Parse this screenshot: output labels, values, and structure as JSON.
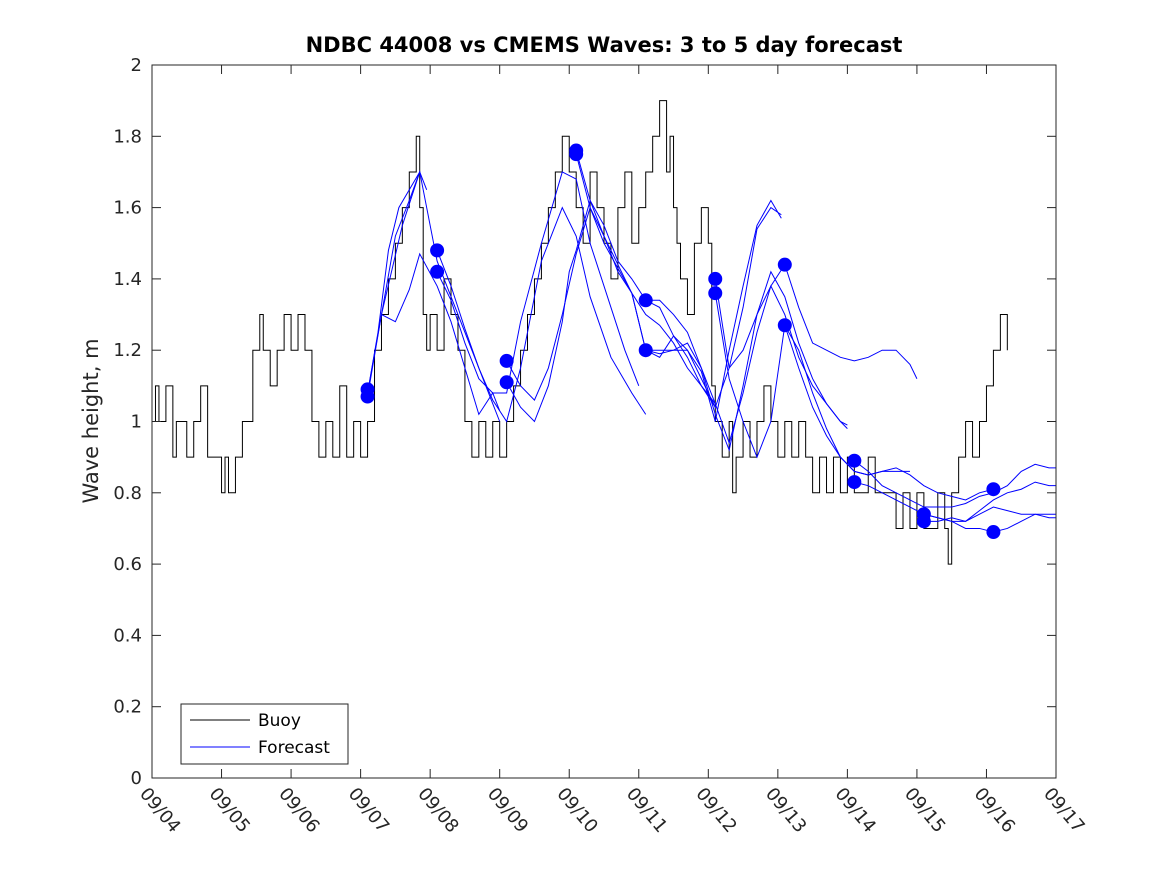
{
  "chart_data": {
    "type": "line",
    "title": "NDBC 44008 vs CMEMS Waves: 3 to 5 day forecast",
    "xlabel": "",
    "ylabel": "Wave height, m",
    "xlim": [
      0,
      13
    ],
    "ylim": [
      0,
      2
    ],
    "x_tick_labels": [
      "09/04",
      "09/05",
      "09/06",
      "09/07",
      "09/08",
      "09/09",
      "09/10",
      "09/11",
      "09/12",
      "09/13",
      "09/14",
      "09/15",
      "09/16",
      "09/17"
    ],
    "y_ticks": [
      0,
      0.2,
      0.4,
      0.6,
      0.8,
      1,
      1.2,
      1.4,
      1.6,
      1.8,
      2
    ],
    "y_tick_labels": [
      "0",
      "0.2",
      "0.4",
      "0.6",
      "0.8",
      "1",
      "1.2",
      "1.4",
      "1.6",
      "1.8",
      "2"
    ],
    "legend": {
      "position": "bottom-left",
      "entries": [
        {
          "label": "Buoy",
          "color": "#000000"
        },
        {
          "label": "Forecast",
          "color": "#0000ff"
        }
      ]
    },
    "colors": {
      "buoy": "#000000",
      "forecast": "#0000ff"
    },
    "buoy": {
      "name": "Buoy",
      "x": [
        0,
        0.05,
        0.1,
        0.2,
        0.3,
        0.35,
        0.4,
        0.5,
        0.6,
        0.7,
        0.8,
        0.9,
        1.0,
        1.05,
        1.1,
        1.2,
        1.3,
        1.45,
        1.55,
        1.6,
        1.7,
        1.8,
        1.9,
        2.0,
        2.1,
        2.2,
        2.3,
        2.4,
        2.5,
        2.6,
        2.7,
        2.8,
        2.9,
        3.0,
        3.1,
        3.2,
        3.3,
        3.4,
        3.5,
        3.6,
        3.7,
        3.8,
        3.85,
        3.9,
        3.95,
        4.0,
        4.1,
        4.2,
        4.3,
        4.4,
        4.5,
        4.6,
        4.7,
        4.8,
        4.9,
        5.0,
        5.1,
        5.2,
        5.3,
        5.4,
        5.5,
        5.6,
        5.7,
        5.8,
        5.9,
        6.0,
        6.1,
        6.2,
        6.3,
        6.4,
        6.5,
        6.6,
        6.7,
        6.8,
        6.9,
        7.0,
        7.1,
        7.2,
        7.3,
        7.4,
        7.45,
        7.5,
        7.55,
        7.6,
        7.7,
        7.8,
        7.9,
        8.0,
        8.05,
        8.1,
        8.2,
        8.3,
        8.35,
        8.4,
        8.5,
        8.6,
        8.7,
        8.8,
        8.9,
        9.0,
        9.1,
        9.2,
        9.3,
        9.4,
        9.5,
        9.6,
        9.7,
        9.8,
        9.9,
        10.0,
        10.1,
        10.2,
        10.3,
        10.4,
        10.5,
        10.6,
        10.7,
        10.8,
        10.9,
        11.0,
        11.1,
        11.2,
        11.3,
        11.4,
        11.45,
        11.5,
        11.6,
        11.7,
        11.8,
        11.9,
        12.0,
        12.1,
        12.2,
        12.3
      ],
      "y": [
        1.0,
        1.1,
        1.0,
        1.1,
        0.9,
        1.0,
        1.0,
        0.9,
        1.0,
        1.1,
        0.9,
        0.9,
        0.8,
        0.9,
        0.8,
        0.9,
        1.0,
        1.2,
        1.3,
        1.2,
        1.1,
        1.2,
        1.3,
        1.2,
        1.3,
        1.2,
        1.0,
        0.9,
        1.0,
        0.9,
        1.1,
        0.9,
        1.0,
        0.9,
        1.0,
        1.2,
        1.3,
        1.4,
        1.5,
        1.6,
        1.7,
        1.8,
        1.6,
        1.3,
        1.2,
        1.3,
        1.2,
        1.4,
        1.3,
        1.2,
        1.0,
        0.9,
        1.0,
        0.9,
        1.0,
        0.9,
        1.0,
        1.1,
        1.2,
        1.3,
        1.4,
        1.5,
        1.6,
        1.7,
        1.8,
        1.7,
        1.6,
        1.5,
        1.7,
        1.6,
        1.5,
        1.4,
        1.6,
        1.7,
        1.5,
        1.6,
        1.7,
        1.8,
        1.9,
        1.7,
        1.8,
        1.6,
        1.5,
        1.4,
        1.3,
        1.5,
        1.6,
        1.5,
        1.1,
        1.0,
        0.9,
        1.0,
        0.8,
        0.9,
        1.0,
        0.9,
        1.0,
        1.1,
        1.0,
        0.9,
        1.0,
        0.9,
        1.0,
        0.9,
        0.8,
        0.9,
        0.8,
        0.9,
        0.8,
        0.9,
        0.8,
        0.8,
        0.9,
        0.8,
        0.8,
        0.8,
        0.7,
        0.8,
        0.7,
        0.8,
        0.7,
        0.7,
        0.8,
        0.7,
        0.6,
        0.8,
        0.9,
        1.0,
        0.9,
        1.0,
        1.1,
        1.2,
        1.3,
        1.2
      ]
    },
    "forecast_series": [
      {
        "name": "Forecast",
        "x": [
          3.1,
          3.25,
          3.4,
          3.55,
          3.7,
          3.85
        ],
        "y": [
          1.08,
          1.25,
          1.48,
          1.6,
          1.65,
          1.7
        ]
      },
      {
        "name": "Forecast",
        "x": [
          3.1,
          3.3,
          3.5,
          3.7,
          3.85,
          3.95
        ],
        "y": [
          1.08,
          1.3,
          1.52,
          1.62,
          1.7,
          1.65
        ]
      },
      {
        "name": "Forecast",
        "x": [
          3.1,
          3.3,
          3.5,
          3.7,
          3.85,
          4.1,
          4.3,
          4.5,
          4.7,
          4.9,
          5.0
        ],
        "y": [
          1.07,
          1.3,
          1.28,
          1.37,
          1.47,
          1.38,
          1.28,
          1.15,
          1.02,
          1.08,
          1.03
        ]
      },
      {
        "name": "Forecast",
        "x": [
          3.3,
          3.6,
          3.85,
          4.0,
          4.1,
          4.3,
          4.6,
          4.9,
          5.0
        ],
        "y": [
          1.3,
          1.55,
          1.7,
          1.55,
          1.45,
          1.35,
          1.2,
          1.05,
          1.0
        ]
      },
      {
        "name": "Forecast",
        "x": [
          4.1,
          4.3,
          4.5,
          4.7,
          4.9,
          5.1,
          5.3,
          5.6,
          5.9,
          6.1,
          6.3,
          6.6,
          6.9,
          7.1
        ],
        "y": [
          1.48,
          1.38,
          1.26,
          1.15,
          1.06,
          1.0,
          1.15,
          1.45,
          1.6,
          1.52,
          1.35,
          1.18,
          1.08,
          1.02
        ]
      },
      {
        "name": "Forecast",
        "x": [
          4.1,
          4.3,
          4.5,
          4.7,
          4.9,
          5.1,
          5.3,
          5.6,
          5.9,
          6.1,
          6.3,
          6.6,
          6.8,
          7.0
        ],
        "y": [
          1.42,
          1.34,
          1.22,
          1.12,
          1.08,
          1.08,
          1.28,
          1.5,
          1.7,
          1.68,
          1.5,
          1.32,
          1.2,
          1.1
        ]
      },
      {
        "name": "Forecast",
        "x": [
          5.1,
          5.3,
          5.5,
          5.7,
          5.9,
          6.1,
          6.3,
          6.5,
          6.7,
          6.9,
          7.1,
          7.3,
          7.5,
          7.7,
          7.9,
          8.1
        ],
        "y": [
          1.17,
          1.1,
          1.06,
          1.15,
          1.3,
          1.47,
          1.6,
          1.52,
          1.42,
          1.36,
          1.3,
          1.27,
          1.22,
          1.15,
          1.1,
          1.04
        ]
      },
      {
        "name": "Forecast",
        "x": [
          5.1,
          5.3,
          5.5,
          5.7,
          5.9,
          6.0,
          6.1,
          6.3,
          6.5,
          6.7,
          6.9,
          7.1,
          7.3,
          7.5,
          7.7,
          7.9,
          8.1
        ],
        "y": [
          1.11,
          1.04,
          1.0,
          1.1,
          1.28,
          1.42,
          1.48,
          1.62,
          1.55,
          1.45,
          1.4,
          1.34,
          1.32,
          1.24,
          1.18,
          1.1,
          1.05
        ]
      },
      {
        "name": "Forecast",
        "x": [
          6.1,
          6.3,
          6.5,
          6.7,
          6.9,
          7.1,
          7.3,
          7.5,
          7.7,
          7.9,
          8.1,
          8.3,
          8.5,
          8.7,
          8.9,
          9.05
        ],
        "y": [
          1.76,
          1.62,
          1.52,
          1.44,
          1.36,
          1.2,
          1.2,
          1.2,
          1.2,
          1.14,
          1.0,
          1.2,
          1.38,
          1.55,
          1.62,
          1.57
        ]
      },
      {
        "name": "Forecast",
        "x": [
          6.1,
          6.3,
          6.5,
          6.7,
          6.9,
          7.1,
          7.3,
          7.5,
          7.7,
          7.9,
          8.1,
          8.3,
          8.5,
          8.7,
          8.9,
          9.05
        ],
        "y": [
          1.75,
          1.6,
          1.5,
          1.43,
          1.36,
          1.2,
          1.18,
          1.24,
          1.2,
          1.12,
          1.04,
          1.15,
          1.32,
          1.54,
          1.6,
          1.58
        ]
      },
      {
        "name": "Forecast",
        "x": [
          7.1,
          7.3,
          7.5,
          7.7,
          7.9,
          8.1,
          8.3,
          8.5,
          8.7,
          8.9,
          9.1,
          9.3,
          9.5,
          9.7,
          9.9,
          10.0
        ],
        "y": [
          1.34,
          1.34,
          1.3,
          1.25,
          1.15,
          1.05,
          0.94,
          1.08,
          1.25,
          1.38,
          1.3,
          1.18,
          1.1,
          1.05,
          1.0,
          0.99
        ]
      },
      {
        "name": "Forecast",
        "x": [
          7.1,
          7.3,
          7.5,
          7.7,
          7.9,
          8.1,
          8.3,
          8.5,
          8.7,
          8.9,
          9.1,
          9.3,
          9.5,
          9.7,
          9.9,
          10.0
        ],
        "y": [
          1.2,
          1.19,
          1.2,
          1.22,
          1.15,
          1.02,
          0.92,
          1.1,
          1.3,
          1.42,
          1.35,
          1.22,
          1.12,
          1.05,
          1.0,
          0.98
        ]
      },
      {
        "name": "Forecast",
        "x": [
          8.1,
          8.3,
          8.5,
          8.7,
          8.9,
          9.1,
          9.3,
          9.5,
          9.7,
          9.9,
          10.1,
          10.3,
          10.5,
          10.7,
          10.9,
          11.0
        ],
        "y": [
          1.4,
          1.15,
          1.2,
          1.3,
          1.38,
          1.44,
          1.32,
          1.22,
          1.2,
          1.18,
          1.17,
          1.18,
          1.2,
          1.2,
          1.16,
          1.12
        ]
      },
      {
        "name": "Forecast",
        "x": [
          8.1,
          8.3,
          8.5,
          8.7,
          8.9,
          9.1,
          9.3,
          9.5,
          9.7,
          9.9,
          10.1,
          10.3,
          10.5,
          10.7,
          10.9
        ],
        "y": [
          1.36,
          1.12,
          1.0,
          0.9,
          1.0,
          1.27,
          1.2,
          1.08,
          0.98,
          0.9,
          0.86,
          0.85,
          0.86,
          0.86,
          0.86
        ]
      },
      {
        "name": "Forecast",
        "x": [
          9.1,
          9.3,
          9.5,
          9.7,
          9.9,
          10.1,
          10.3,
          10.5,
          10.7,
          10.9,
          11.1,
          11.3,
          11.5,
          11.7,
          11.9,
          12.1
        ],
        "y": [
          1.27,
          1.15,
          1.04,
          0.96,
          0.9,
          0.86,
          0.85,
          0.86,
          0.87,
          0.85,
          0.82,
          0.8,
          0.79,
          0.78,
          0.8,
          0.81
        ]
      },
      {
        "name": "Forecast",
        "x": [
          10.1,
          10.3,
          10.5,
          10.7,
          10.9,
          11.1,
          11.3,
          11.5,
          11.7,
          11.9,
          12.1,
          12.3,
          12.5,
          12.7,
          12.9,
          13.0
        ],
        "y": [
          0.89,
          0.86,
          0.82,
          0.8,
          0.78,
          0.76,
          0.76,
          0.76,
          0.77,
          0.79,
          0.8,
          0.82,
          0.86,
          0.88,
          0.87,
          0.87
        ]
      },
      {
        "name": "Forecast",
        "x": [
          10.1,
          10.3,
          10.5,
          10.7,
          10.9,
          11.1,
          11.3,
          11.5,
          11.7,
          11.9,
          12.1,
          12.3,
          12.5,
          12.7,
          12.9,
          13.0
        ],
        "y": [
          0.83,
          0.82,
          0.8,
          0.78,
          0.76,
          0.74,
          0.73,
          0.72,
          0.72,
          0.75,
          0.78,
          0.8,
          0.81,
          0.83,
          0.82,
          0.82
        ]
      },
      {
        "name": "Forecast",
        "x": [
          11.1,
          11.3,
          11.5,
          11.7,
          11.9,
          12.1,
          12.3,
          12.5,
          12.7,
          12.9,
          13.0
        ],
        "y": [
          0.74,
          0.73,
          0.72,
          0.7,
          0.7,
          0.69,
          0.7,
          0.72,
          0.74,
          0.74,
          0.74
        ]
      },
      {
        "name": "Forecast",
        "x": [
          11.1,
          11.3,
          11.5,
          11.7,
          11.9,
          12.1,
          12.3,
          12.5,
          12.7,
          12.9,
          13.0
        ],
        "y": [
          0.72,
          0.72,
          0.73,
          0.72,
          0.74,
          0.76,
          0.75,
          0.74,
          0.74,
          0.73,
          0.73
        ]
      }
    ],
    "forecast_markers": {
      "x": [
        3.1,
        3.1,
        4.1,
        4.1,
        5.1,
        5.1,
        6.1,
        6.1,
        7.1,
        7.1,
        8.1,
        8.1,
        9.1,
        9.1,
        10.1,
        10.1,
        11.1,
        11.1,
        12.1,
        12.1
      ],
      "y": [
        1.09,
        1.07,
        1.48,
        1.42,
        1.17,
        1.11,
        1.76,
        1.75,
        1.34,
        1.2,
        1.4,
        1.36,
        1.44,
        1.27,
        0.89,
        0.83,
        0.74,
        0.72,
        0.81,
        0.69
      ]
    }
  }
}
